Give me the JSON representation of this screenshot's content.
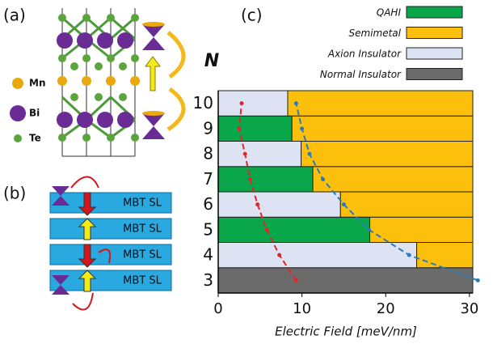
{
  "panels": {
    "a": {
      "label": "(a)",
      "atoms": [
        "Mn",
        "Bi",
        "Te"
      ]
    },
    "b": {
      "label": "(b)",
      "blocks": [
        "MBT SL",
        "MBT SL",
        "MBT SL",
        "MBT SL"
      ]
    }
  },
  "chart_data": {
    "type": "stacked_barh",
    "panel_label": "(c)",
    "y_label": "N",
    "x_label": "Electric Field [meV/nm]",
    "categories": [
      "3",
      "4",
      "5",
      "6",
      "7",
      "8",
      "9",
      "10"
    ],
    "series": [
      {
        "name": "QAHI",
        "color": "#0aa64a",
        "values": [
          0,
          0,
          18.1,
          0,
          11.3,
          0,
          8.8,
          0
        ]
      },
      {
        "name": "Semimetal",
        "color": "#fbbf0c",
        "values": [
          0,
          6.7,
          12.3,
          15.8,
          19.1,
          20.5,
          21.6,
          22.1
        ]
      },
      {
        "name": "Axion Insulator",
        "color": "#dde3f2",
        "values": [
          0,
          23.7,
          0,
          14.6,
          0,
          9.9,
          0,
          8.3
        ]
      },
      {
        "name": "Normal Insulator",
        "color": "#6b6b6b",
        "values": [
          30.4,
          0,
          0,
          0,
          0,
          0,
          0,
          0
        ]
      }
    ],
    "stack_order": [
      0,
      2,
      3,
      1
    ],
    "curves": [
      {
        "color": "#e0262b",
        "values": [
          9.3,
          7.3,
          5.8,
          4.7,
          3.8,
          3.2,
          2.5,
          2.8
        ]
      },
      {
        "color": "#2b7bb9",
        "values": [
          31.0,
          22.8,
          18.0,
          15.0,
          12.5,
          10.9,
          10.0,
          9.3
        ]
      }
    ],
    "xlim": [
      0,
      30.4
    ],
    "xticks": [
      0,
      10,
      20,
      30
    ]
  }
}
